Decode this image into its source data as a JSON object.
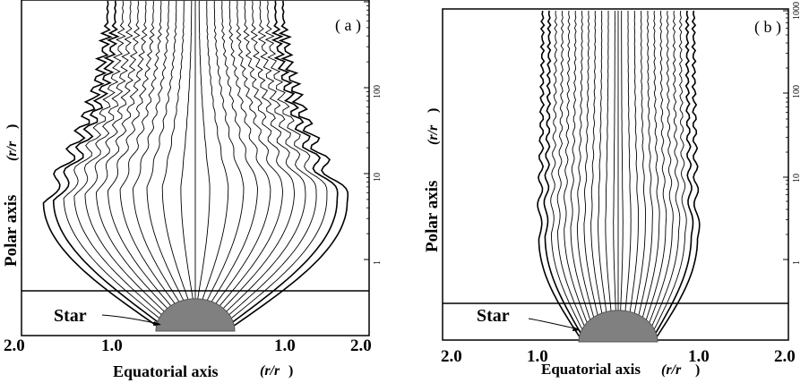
{
  "chart_data": [
    {
      "type": "line",
      "panel_label": "( a )",
      "xlabel": "Equatorial axis",
      "xlabel_unit": "(r/r",
      "xlabel_unit_close": ")",
      "ylabel": "Polar axis",
      "ylabel_unit": "(r/r",
      "ylabel_unit_close": ")",
      "x_ticks": [
        "2.0",
        "1.0",
        "1.0",
        "2.0"
      ],
      "y_scale": "log",
      "y_ticks": [
        "1",
        "10",
        "100"
      ],
      "y_ticks_position": "right",
      "annotation": "Star",
      "streamlines": 24,
      "grid": false
    },
    {
      "type": "line",
      "panel_label": "( b )",
      "xlabel": "Equatorial axis",
      "xlabel_unit": "(r/r",
      "xlabel_unit_close": ")",
      "ylabel": "Polar axis",
      "ylabel_unit": "(r/r",
      "ylabel_unit_close": ")",
      "x_ticks": [
        "2.0",
        "1.0",
        "1.0",
        "2.0"
      ],
      "y_scale": "log",
      "y_ticks": [
        "1",
        "10",
        "100",
        "1000"
      ],
      "y_ticks_position": "right",
      "annotation": "Star",
      "streamlines": 24,
      "grid": false
    }
  ],
  "colors": {
    "star_fill": "#808080",
    "line": "#000000"
  }
}
